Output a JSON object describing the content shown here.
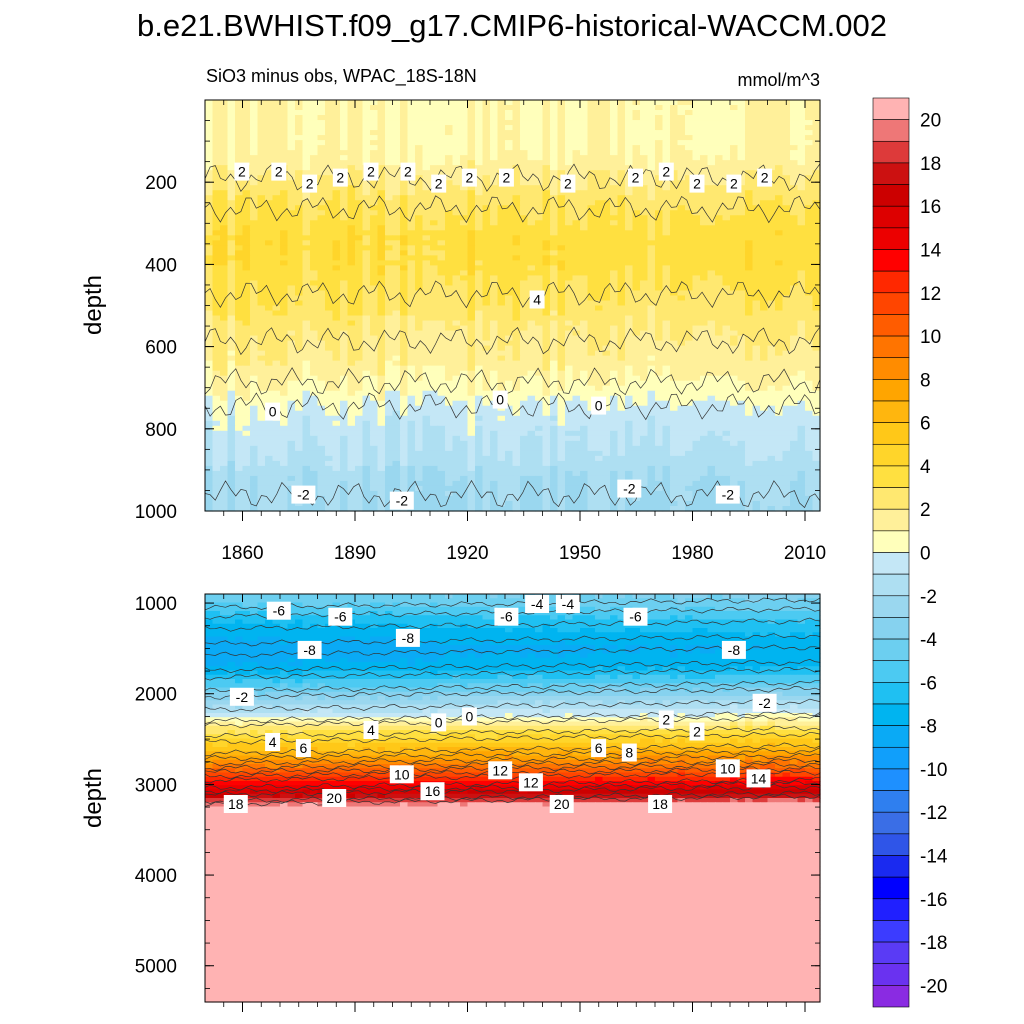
{
  "chart_data": {
    "type": "heatmap",
    "title": "b.e21.BWHIST.f09_g17.CMIP6-historical-WACCM.002",
    "subtitle_left": "SiO3 minus obs, WPAC_18S-18N",
    "units": "mmol/m^3",
    "ylabel": "depth",
    "x_ticks": [
      "1860",
      "1890",
      "1920",
      "1950",
      "1980",
      "2010"
    ],
    "x_range": [
      1850,
      2014
    ],
    "colorbar": {
      "levels": [
        -21,
        -20,
        -19,
        -18,
        -17,
        -16,
        -15,
        -14,
        -13,
        -12,
        -11,
        -10,
        -9,
        -8,
        -7,
        -6,
        -5,
        -4,
        -3,
        -2,
        -1,
        0,
        1,
        2,
        3,
        4,
        5,
        6,
        7,
        8,
        9,
        10,
        11,
        12,
        13,
        14,
        15,
        16,
        17,
        18,
        19,
        20,
        21
      ],
      "tick_labels": [
        "20",
        "18",
        "16",
        "14",
        "12",
        "10",
        "8",
        "6",
        "4",
        "2",
        "0",
        "-2",
        "-4",
        "-6",
        "-8",
        "-10",
        "-12",
        "-14",
        "-16",
        "-18",
        "-20"
      ]
    },
    "panels": [
      {
        "name": "upper",
        "y_range": [
          0,
          1000
        ],
        "y_ticks": [
          "200",
          "400",
          "600",
          "800",
          "1000"
        ],
        "profile": [
          [
            0,
            1.0
          ],
          [
            100,
            1.0
          ],
          [
            150,
            1.3
          ],
          [
            200,
            2.2
          ],
          [
            280,
            3.2
          ],
          [
            330,
            3.6
          ],
          [
            400,
            3.5
          ],
          [
            500,
            2.8
          ],
          [
            560,
            2.2
          ],
          [
            650,
            1.5
          ],
          [
            700,
            0.8
          ],
          [
            760,
            -0.3
          ],
          [
            850,
            -1.0
          ],
          [
            920,
            -1.8
          ],
          [
            1000,
            -2.2
          ]
        ],
        "contour_labels": [
          "2",
          "2",
          "2",
          "2",
          "2",
          "2",
          "4",
          "2",
          "2",
          "2",
          "2",
          "2",
          "2",
          "2",
          "2",
          "2",
          "0",
          "0",
          "0",
          "-2",
          "-2",
          "-2",
          "-2"
        ]
      },
      {
        "name": "lower",
        "y_range": [
          900,
          5400
        ],
        "y_ticks": [
          "1000",
          "2000",
          "3000",
          "4000",
          "5000"
        ],
        "profile": [
          [
            900,
            -4.0
          ],
          [
            1000,
            -4.5
          ],
          [
            1200,
            -6.5
          ],
          [
            1500,
            -8.3
          ],
          [
            1700,
            -7.5
          ],
          [
            1900,
            -5.0
          ],
          [
            2100,
            -2.0
          ],
          [
            2250,
            0.0
          ],
          [
            2400,
            3.0
          ],
          [
            2600,
            6.0
          ],
          [
            2800,
            9.5
          ],
          [
            3000,
            14.0
          ],
          [
            3150,
            18.0
          ],
          [
            3250,
            21.0
          ],
          [
            5400,
            21.0
          ]
        ],
        "contour_labels": [
          "-6",
          "-6",
          "-8",
          "-8",
          "-6",
          "-8",
          "-4",
          "-2",
          "0",
          "2",
          "-6",
          "-4",
          "-2",
          "0",
          "2",
          "4",
          "6",
          "4",
          "12",
          "10",
          "10",
          "8",
          "6",
          "12",
          "14",
          "16",
          "18",
          "20",
          "20",
          "18"
        ]
      }
    ]
  }
}
